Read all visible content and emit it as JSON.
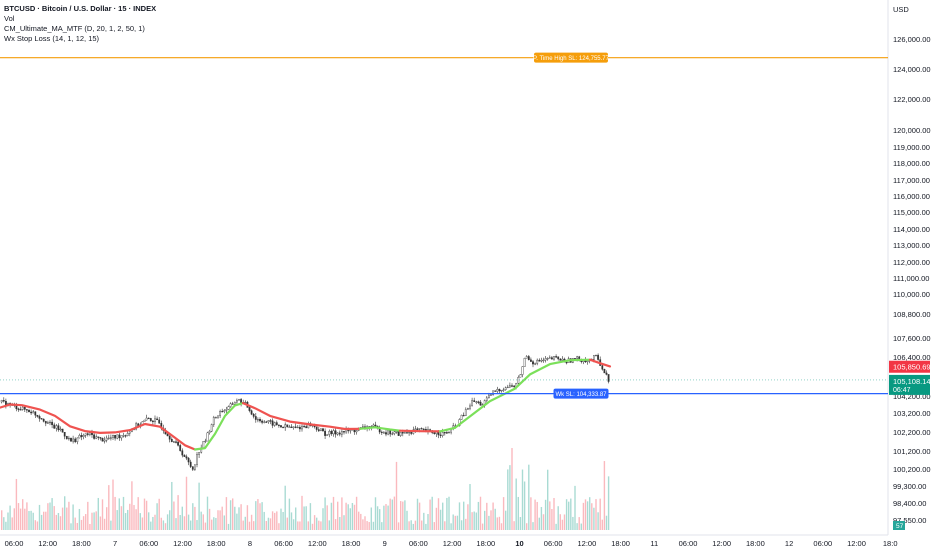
{
  "legend": {
    "title": "BTCUSD · Bitcoin / U.S. Dollar · 15 · INDEX",
    "lines": [
      "Vol",
      "CM_Ultimate_MA_MTF (D, 20, 1, 2, 50, 1)",
      "Wx Stop Loss (14, 1, 12, 15)"
    ]
  },
  "chart_data": {
    "type": "candlestick",
    "currency": "USD",
    "y_ticks": [
      126000,
      124000,
      122000,
      120000,
      119000,
      118000,
      117000,
      116000,
      115000,
      114000,
      113000,
      112000,
      111000,
      110000,
      108800,
      107600,
      106400,
      104200,
      103200,
      102200,
      101200,
      100200,
      99300,
      98400,
      97550
    ],
    "y_tick_labels": [
      "126,000.00",
      "124,000.00",
      "122,000.00",
      "120,000.00",
      "119,000.00",
      "118,000.00",
      "117,000.00",
      "116,000.00",
      "115,000.00",
      "114,000.00",
      "113,000.00",
      "112,000.00",
      "111,000.00",
      "110,000.00",
      "108,800.00",
      "107,600.00",
      "106,400.00",
      "104,200.00",
      "103,200.00",
      "102,200.00",
      "101,200.00",
      "100,200.00",
      "99,300.00",
      "98,400.00",
      "97,550.00"
    ],
    "x_tick_labels": [
      "06:00",
      "12:00",
      "18:00",
      "7",
      "06:00",
      "12:00",
      "18:00",
      "8",
      "06:00",
      "12:00",
      "18:00",
      "9",
      "06:00",
      "12:00",
      "18:00",
      "10",
      "06:00",
      "12:00",
      "18:00",
      "11",
      "06:00",
      "12:00",
      "18:00",
      "12",
      "06:00",
      "12:00",
      "18:0"
    ],
    "x_tick_bold": [
      "10"
    ],
    "horizontal_lines": [
      {
        "label": "P. Time High SL: 124,755.77",
        "value": 124755.77,
        "color": "#f59e0b"
      },
      {
        "label": "Wk SL: 104,333.87",
        "value": 104333.87,
        "color": "#2962ff"
      }
    ],
    "price_labels": [
      {
        "value": 105850.69,
        "text": "105,850.69",
        "color": "#f23645"
      },
      {
        "value": 105108.14,
        "text": "105,108.14",
        "subtext": "06:47",
        "color": "#089981"
      }
    ],
    "volume_label": "57",
    "ma_segments": [
      {
        "color": "#ef5350",
        "points": [
          [
            0,
            103520
          ],
          [
            10,
            103700
          ],
          [
            22,
            103660
          ],
          [
            40,
            103400
          ],
          [
            55,
            103050
          ],
          [
            70,
            102500
          ],
          [
            85,
            102250
          ],
          [
            100,
            102150
          ],
          [
            115,
            102180
          ],
          [
            130,
            102300
          ],
          [
            145,
            102620
          ],
          [
            160,
            102480
          ],
          [
            175,
            101900
          ],
          [
            185,
            101500
          ],
          [
            195,
            101280
          ]
        ]
      },
      {
        "color": "#7be05a",
        "points": [
          [
            195,
            101280
          ],
          [
            205,
            101350
          ],
          [
            215,
            102100
          ],
          [
            225,
            103050
          ],
          [
            235,
            103650
          ],
          [
            243,
            103780
          ]
        ]
      },
      {
        "color": "#ef5350",
        "points": [
          [
            243,
            103780
          ],
          [
            255,
            103480
          ],
          [
            270,
            103050
          ],
          [
            290,
            102750
          ],
          [
            310,
            102600
          ],
          [
            330,
            102480
          ],
          [
            345,
            102360
          ],
          [
            360,
            102370
          ]
        ]
      },
      {
        "color": "#7be05a",
        "points": [
          [
            360,
            102370
          ],
          [
            375,
            102450
          ],
          [
            390,
            102330
          ],
          [
            400,
            102270
          ]
        ]
      },
      {
        "color": "#ef5350",
        "points": [
          [
            400,
            102270
          ],
          [
            420,
            102240
          ],
          [
            440,
            102230
          ]
        ]
      },
      {
        "color": "#7be05a",
        "points": [
          [
            440,
            102230
          ],
          [
            455,
            102420
          ],
          [
            470,
            103020
          ],
          [
            490,
            103900
          ],
          [
            505,
            104330
          ],
          [
            515,
            104620
          ],
          [
            530,
            105420
          ],
          [
            550,
            106000
          ],
          [
            570,
            106220
          ],
          [
            590,
            106250
          ]
        ]
      },
      {
        "color": "#ef5350",
        "points": [
          [
            590,
            106250
          ],
          [
            600,
            106050
          ],
          [
            610,
            105870
          ]
        ]
      }
    ],
    "price_path": [
      [
        0,
        103850
      ],
      [
        8,
        103700
      ],
      [
        18,
        103500
      ],
      [
        30,
        103300
      ],
      [
        42,
        102900
      ],
      [
        52,
        102500
      ],
      [
        60,
        102300
      ],
      [
        70,
        101700
      ],
      [
        78,
        101900
      ],
      [
        88,
        102100
      ],
      [
        100,
        101800
      ],
      [
        112,
        101900
      ],
      [
        125,
        102100
      ],
      [
        135,
        102500
      ],
      [
        148,
        102900
      ],
      [
        158,
        102700
      ],
      [
        168,
        102000
      ],
      [
        178,
        101400
      ],
      [
        186,
        100700
      ],
      [
        192,
        100200
      ],
      [
        198,
        101200
      ],
      [
        205,
        101800
      ],
      [
        212,
        102800
      ],
      [
        220,
        103300
      ],
      [
        228,
        103500
      ],
      [
        236,
        104000
      ],
      [
        245,
        103700
      ],
      [
        255,
        102900
      ],
      [
        268,
        102700
      ],
      [
        280,
        102500
      ],
      [
        295,
        102400
      ],
      [
        310,
        102600
      ],
      [
        325,
        102100
      ],
      [
        340,
        102200
      ],
      [
        355,
        102300
      ],
      [
        370,
        102500
      ],
      [
        385,
        102200
      ],
      [
        400,
        102100
      ],
      [
        415,
        102300
      ],
      [
        430,
        102200
      ],
      [
        445,
        102100
      ],
      [
        455,
        102500
      ],
      [
        465,
        103300
      ],
      [
        472,
        103900
      ],
      [
        482,
        103700
      ],
      [
        492,
        104400
      ],
      [
        505,
        104700
      ],
      [
        515,
        104800
      ],
      [
        520,
        105500
      ],
      [
        525,
        106500
      ],
      [
        532,
        106100
      ],
      [
        542,
        106200
      ],
      [
        555,
        106350
      ],
      [
        565,
        106150
      ],
      [
        575,
        106300
      ],
      [
        588,
        106200
      ],
      [
        596,
        106450
      ],
      [
        603,
        105600
      ],
      [
        608,
        105100
      ]
    ]
  }
}
